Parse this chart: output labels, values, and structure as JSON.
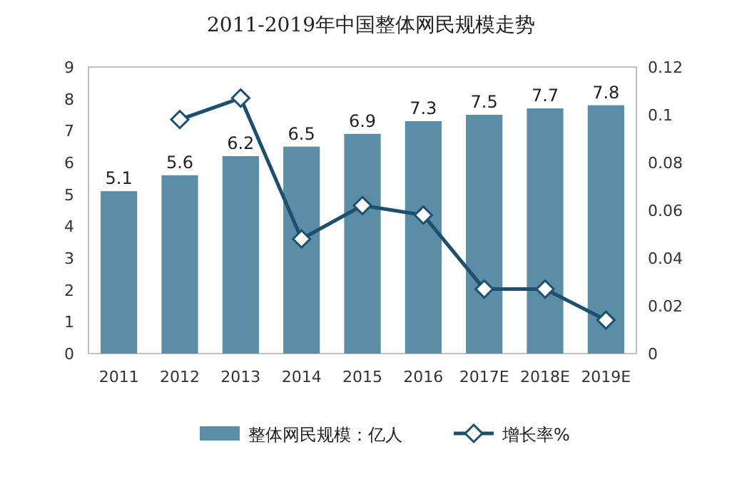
{
  "chart_data": {
    "type": "bar",
    "title": "2011-2019年中国整体网民规模走势",
    "categories": [
      "2011",
      "2012",
      "2013",
      "2014",
      "2015",
      "2016",
      "2017E",
      "2018E",
      "2019E"
    ],
    "series": [
      {
        "name": "整体网民规模：亿人",
        "color": "#5b8ea6",
        "values": [
          5.1,
          5.6,
          6.2,
          6.5,
          6.9,
          7.3,
          7.5,
          7.7,
          7.8
        ],
        "value_labels": [
          "5.1",
          "5.6",
          "6.2",
          "6.5",
          "6.9",
          "7.3",
          "7.5",
          "7.7",
          "7.8"
        ]
      },
      {
        "name": "增长率%",
        "type": "line",
        "axis": "y2",
        "color": "#1d4f6e",
        "values": [
          null,
          0.098,
          0.107,
          0.048,
          0.062,
          0.058,
          0.027,
          0.027,
          0.014
        ]
      }
    ],
    "ylim": [
      0,
      9
    ],
    "yticks": [
      0,
      1,
      2,
      3,
      4,
      5,
      6,
      7,
      8,
      9
    ],
    "y2lim": [
      0,
      0.12
    ],
    "y2ticks": [
      0,
      0.02,
      0.04,
      0.06,
      0.08,
      0.1,
      0.12
    ],
    "legend": "bottom",
    "marker": "diamond",
    "line_style": "solid"
  }
}
